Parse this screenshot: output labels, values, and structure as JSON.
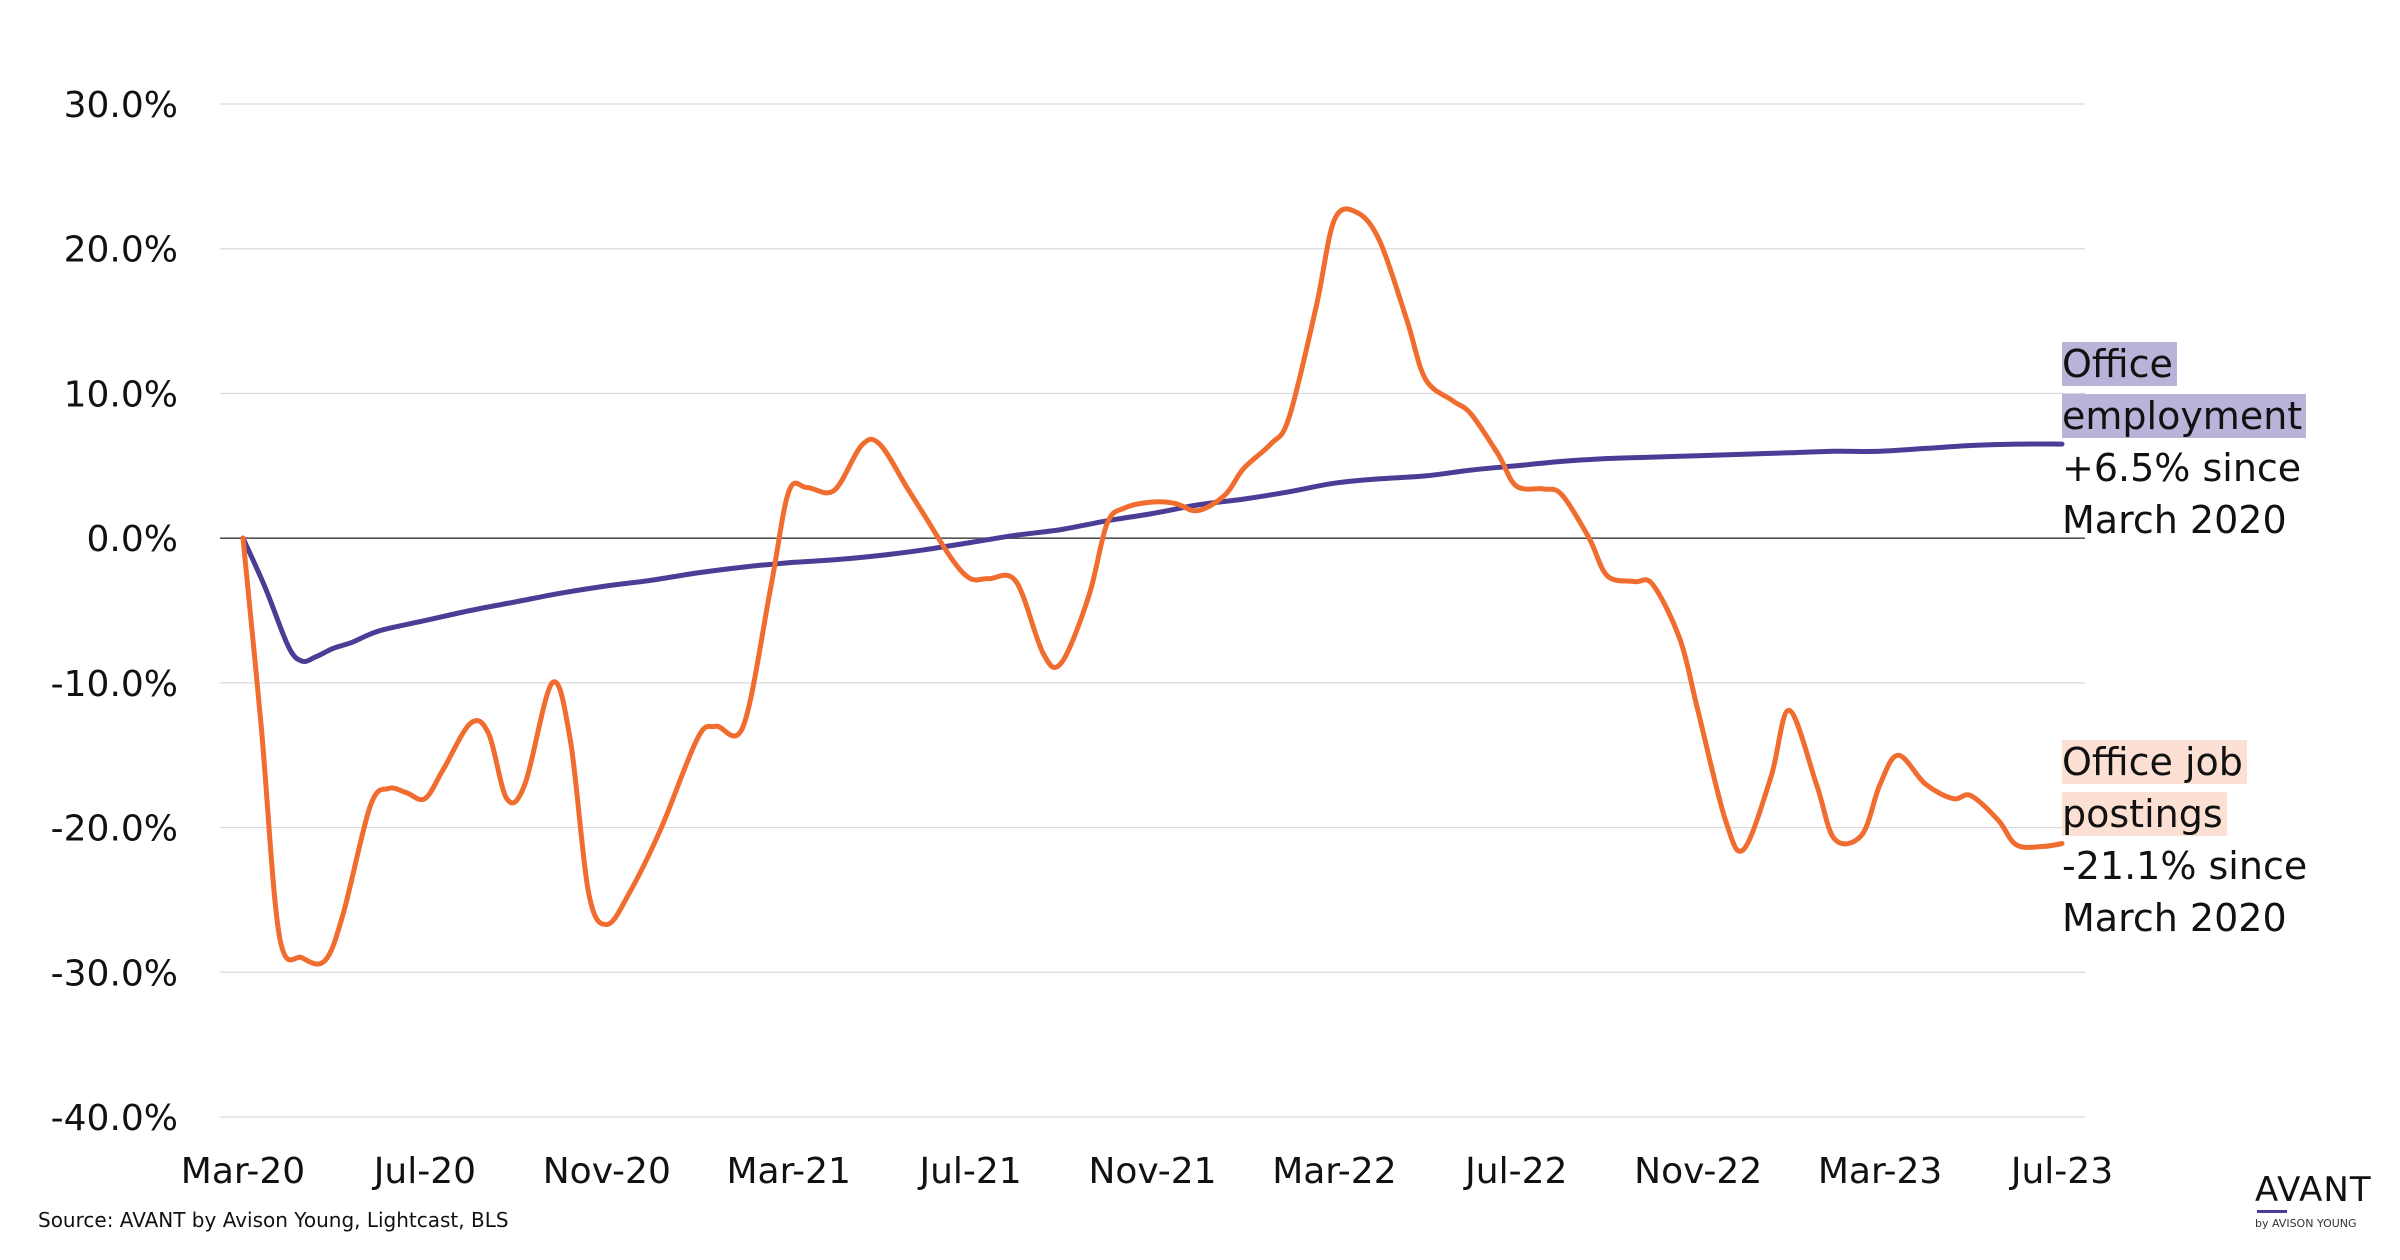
{
  "chart_data": {
    "type": "line",
    "title": "",
    "xlabel": "",
    "ylabel": "",
    "ylim": [
      -40,
      30
    ],
    "grid": true,
    "y_ticks": [
      "30.0%",
      "20.0%",
      "10.0%",
      "0.0%",
      "-10.0%",
      "-20.0%",
      "-30.0%",
      "-40.0%"
    ],
    "y_tick_values": [
      30,
      20,
      10,
      0,
      -10,
      -20,
      -30,
      -40
    ],
    "x_ticks": [
      "Mar-20",
      "Jul-20",
      "Nov-20",
      "Mar-21",
      "Jul-21",
      "Nov-21",
      "Mar-22",
      "Jul-22",
      "Nov-22",
      "Mar-23",
      "Jul-23"
    ],
    "x_tick_months": [
      0,
      4,
      8,
      12,
      16,
      20,
      24,
      28,
      32,
      36,
      40
    ],
    "x_range_months": [
      0,
      40
    ],
    "series": [
      {
        "key": "employment",
        "color": "#4b3d96",
        "points": [
          [
            0,
            0
          ],
          [
            0.5,
            -3.5
          ],
          [
            1.0,
            -7.5
          ],
          [
            1.3,
            -8.5
          ],
          [
            1.6,
            -8.2
          ],
          [
            2.0,
            -7.6
          ],
          [
            2.4,
            -7.2
          ],
          [
            3.0,
            -6.4
          ],
          [
            4.0,
            -5.7
          ],
          [
            5.0,
            -5.0
          ],
          [
            6.0,
            -4.4
          ],
          [
            7.0,
            -3.8
          ],
          [
            8.0,
            -3.3
          ],
          [
            9.0,
            -2.9
          ],
          [
            10.0,
            -2.4
          ],
          [
            11.0,
            -2.0
          ],
          [
            12.0,
            -1.7
          ],
          [
            13.0,
            -1.5
          ],
          [
            14.0,
            -1.2
          ],
          [
            15.0,
            -0.8
          ],
          [
            16.0,
            -0.3
          ],
          [
            17.0,
            0.2
          ],
          [
            18.0,
            0.6
          ],
          [
            19.0,
            1.2
          ],
          [
            20.0,
            1.7
          ],
          [
            21.0,
            2.3
          ],
          [
            22.0,
            2.7
          ],
          [
            23.0,
            3.2
          ],
          [
            24.0,
            3.8
          ],
          [
            25.0,
            4.1
          ],
          [
            26.0,
            4.3
          ],
          [
            27.0,
            4.7
          ],
          [
            28.0,
            5.0
          ],
          [
            29.0,
            5.3
          ],
          [
            30.0,
            5.5
          ],
          [
            31.0,
            5.6
          ],
          [
            32.0,
            5.7
          ],
          [
            33.0,
            5.8
          ],
          [
            34.0,
            5.9
          ],
          [
            35.0,
            6.0
          ],
          [
            36.0,
            6.0
          ],
          [
            37.0,
            6.2
          ],
          [
            38.0,
            6.4
          ],
          [
            39.0,
            6.5
          ],
          [
            40.0,
            6.5
          ]
        ]
      },
      {
        "key": "postings",
        "color": "#f06c2f",
        "points": [
          [
            0,
            0
          ],
          [
            0.4,
            -13.0
          ],
          [
            0.8,
            -27.5
          ],
          [
            1.3,
            -29.0
          ],
          [
            1.8,
            -29.2
          ],
          [
            2.2,
            -26.0
          ],
          [
            2.8,
            -18.5
          ],
          [
            3.2,
            -17.3
          ],
          [
            3.6,
            -17.6
          ],
          [
            4.0,
            -18.0
          ],
          [
            4.4,
            -16.0
          ],
          [
            5.0,
            -12.8
          ],
          [
            5.4,
            -13.5
          ],
          [
            5.8,
            -18.0
          ],
          [
            6.2,
            -17.0
          ],
          [
            6.8,
            -10.0
          ],
          [
            7.2,
            -14.0
          ],
          [
            7.6,
            -24.5
          ],
          [
            8.0,
            -26.7
          ],
          [
            8.5,
            -24.5
          ],
          [
            9.2,
            -20.0
          ],
          [
            10.0,
            -13.8
          ],
          [
            10.4,
            -13.0
          ],
          [
            11.0,
            -13.0
          ],
          [
            11.6,
            -3.5
          ],
          [
            12.0,
            3.2
          ],
          [
            12.4,
            3.5
          ],
          [
            13.0,
            3.3
          ],
          [
            13.6,
            6.4
          ],
          [
            14.0,
            6.5
          ],
          [
            14.6,
            3.5
          ],
          [
            15.0,
            1.5
          ],
          [
            15.6,
            -1.5
          ],
          [
            16.0,
            -2.8
          ],
          [
            16.4,
            -2.8
          ],
          [
            17.0,
            -3.0
          ],
          [
            17.6,
            -8.0
          ],
          [
            18.0,
            -8.6
          ],
          [
            18.6,
            -4.0
          ],
          [
            19.0,
            1.0
          ],
          [
            19.4,
            2.1
          ],
          [
            20.0,
            2.5
          ],
          [
            20.5,
            2.4
          ],
          [
            21.0,
            1.9
          ],
          [
            21.6,
            3.0
          ],
          [
            22.0,
            4.8
          ],
          [
            22.6,
            6.5
          ],
          [
            23.0,
            8.3
          ],
          [
            23.6,
            16.0
          ],
          [
            24.0,
            22.0
          ],
          [
            24.5,
            22.5
          ],
          [
            25.0,
            20.5
          ],
          [
            25.6,
            15.0
          ],
          [
            26.0,
            11.0
          ],
          [
            26.6,
            9.5
          ],
          [
            27.0,
            8.6
          ],
          [
            27.6,
            5.8
          ],
          [
            28.0,
            3.6
          ],
          [
            28.6,
            3.4
          ],
          [
            29.0,
            3.0
          ],
          [
            29.6,
            0.0
          ],
          [
            30.0,
            -2.6
          ],
          [
            30.6,
            -3.0
          ],
          [
            31.0,
            -3.2
          ],
          [
            31.6,
            -7.0
          ],
          [
            32.0,
            -12.0
          ],
          [
            32.6,
            -19.5
          ],
          [
            33.0,
            -21.5
          ],
          [
            33.6,
            -16.5
          ],
          [
            34.0,
            -11.9
          ],
          [
            34.6,
            -17.0
          ],
          [
            35.0,
            -20.8
          ],
          [
            35.6,
            -20.5
          ],
          [
            36.0,
            -17.0
          ],
          [
            36.4,
            -15.0
          ],
          [
            37.0,
            -17.0
          ],
          [
            37.6,
            -18.0
          ],
          [
            38.0,
            -17.8
          ],
          [
            38.6,
            -19.5
          ],
          [
            39.0,
            -21.2
          ],
          [
            39.6,
            -21.3
          ],
          [
            40.0,
            -21.1
          ]
        ]
      }
    ]
  },
  "annotations": {
    "employment": {
      "line1": "Office",
      "line2": "employment",
      "line3": "+6.5% since",
      "line4": "March 2020"
    },
    "postings": {
      "line1": "Office job",
      "line2": "postings",
      "line3": "-21.1% since",
      "line4": "March 2020"
    }
  },
  "source": "Source: AVANT by Avison Young, Lightcast, BLS",
  "logo": {
    "main": "AVANT",
    "sub": "by AVISON YOUNG"
  },
  "colors": {
    "employment": "#4b3d96",
    "postings": "#f06c2f",
    "employment_highlight": "#b7b3d9",
    "postings_highlight": "#fbe0d3",
    "grid": "#d9d9d9",
    "zero_line": "#555555"
  }
}
